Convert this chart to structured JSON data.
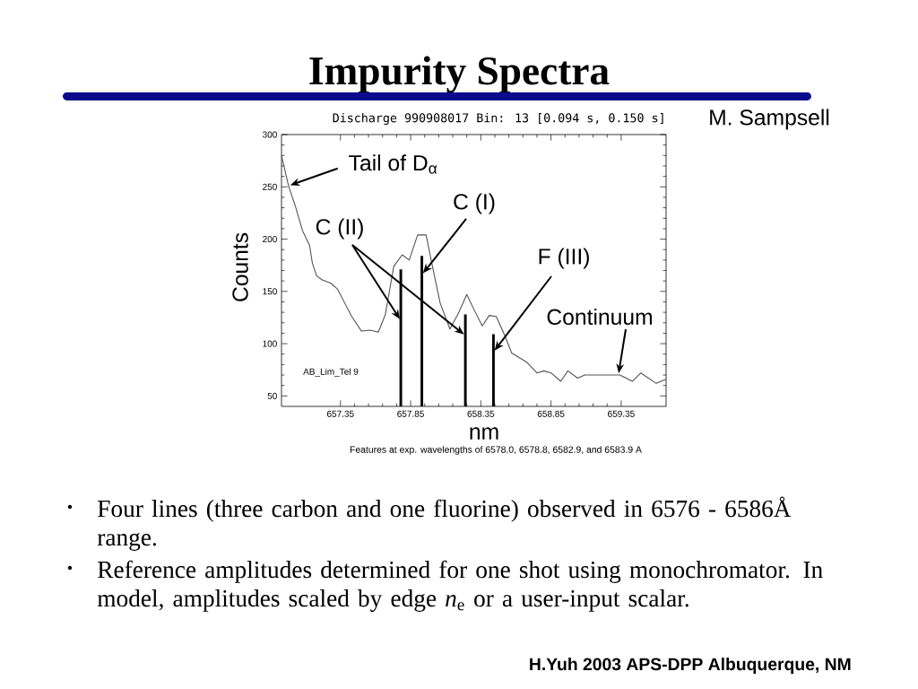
{
  "chart_data": {
    "type": "line",
    "title": "Impurity Spectra",
    "subtitle": "Discharge 990908017 Bin: 13 [0.094 s, 0.150 s]",
    "xlabel": "nm",
    "ylabel": "Counts",
    "xlim": [
      656.93,
      659.67
    ],
    "ylim": [
      40,
      300
    ],
    "xticks": [
      657.35,
      657.85,
      658.35,
      658.85,
      659.35
    ],
    "yticks": [
      50,
      100,
      150,
      200,
      250,
      300
    ],
    "series": [
      {
        "color": "#505050",
        "x": [
          656.93,
          656.98,
          657.03,
          657.08,
          657.13,
          657.15,
          657.18,
          657.22,
          657.28,
          657.33,
          657.38,
          657.43,
          657.5,
          657.56,
          657.62,
          657.67,
          657.7,
          657.73,
          657.79,
          657.84,
          657.9,
          657.96,
          658.01,
          658.06,
          658.13,
          658.19,
          658.25,
          658.3,
          658.36,
          658.41,
          658.46,
          658.52,
          658.57,
          658.68,
          658.75,
          658.8,
          658.85,
          658.92,
          658.97,
          659.04,
          659.09,
          659.34,
          659.43,
          659.49,
          659.6,
          659.67
        ],
        "values": [
          280,
          251,
          231,
          208,
          194,
          177,
          165,
          161,
          158,
          152,
          139,
          126,
          112,
          113,
          111,
          128,
          151,
          174,
          185,
          180,
          204,
          204,
          171,
          139,
          114,
          129,
          147,
          133,
          117,
          127,
          126,
          108,
          91,
          82,
          72,
          74,
          72,
          64,
          74,
          67,
          70,
          70,
          64,
          72,
          62,
          66
        ]
      },
      {
        "type": "bar",
        "color": "#000000",
        "x": [
          657.78,
          657.93,
          658.24,
          658.44
        ],
        "values": [
          171,
          184,
          128,
          109
        ]
      }
    ],
    "annotations": [
      "M. Sampsell",
      {
        "text": "Tail of D$_{α}$",
        "x": 656.98,
        "y": 251
      },
      {
        "text": "C (II)",
        "x": 657.78,
        "y": 122
      },
      {
        "text": "C (I)",
        "x": 657.93,
        "y": 166
      },
      {
        "text": "F (III)",
        "x": 658.44,
        "y": 92
      },
      {
        "text": "Continuum",
        "x": 659.33,
        "y": 70
      },
      "AB_Lim_Tel 9",
      "Features at exp. wavelengths of 6578.0, 6578.8, 6582.9, and 6583.9 A",
      "•",
      "Four lines (three carbon and one fluorine) observed in 6576 - 6586Å range.",
      "•",
      "Reference amplitudes determined for one shot using monochromator. In model, amplitudes scaled by edge *n*$_{e}$ or a user-input scalar.",
      "H.Yuh   2003 APS-DPP Albuquerque, NM"
    ]
  }
}
